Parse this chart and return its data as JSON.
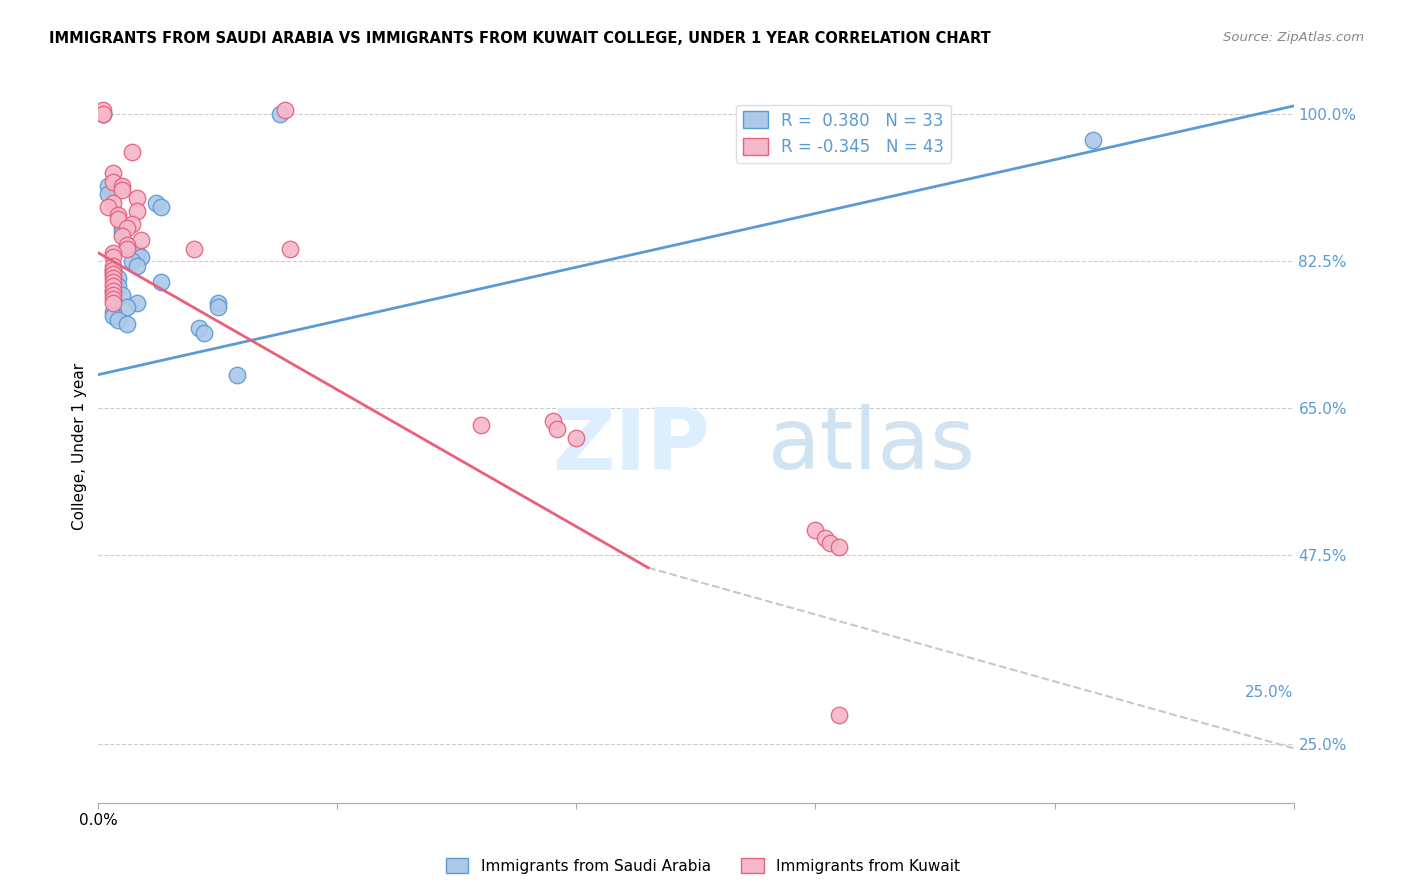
{
  "title": "IMMIGRANTS FROM SAUDI ARABIA VS IMMIGRANTS FROM KUWAIT COLLEGE, UNDER 1 YEAR CORRELATION CHART",
  "source": "Source: ZipAtlas.com",
  "ylabel": "College, Under 1 year",
  "y_ticks_labels": [
    "100.0%",
    "82.5%",
    "65.0%",
    "47.5%",
    "25.0%"
  ],
  "y_tick_values": [
    1.0,
    0.825,
    0.65,
    0.475,
    0.25
  ],
  "x_range": [
    0.0,
    0.25
  ],
  "y_range": [
    0.18,
    1.03
  ],
  "color_blue": "#adc8e8",
  "color_pink": "#f5b8cb",
  "line_blue": "#5b9bd5",
  "line_pink": "#e8607a",
  "line_gray_dash": "#c8c8c8",
  "saudi_points": [
    [
      0.001,
      1.0
    ],
    [
      0.001,
      1.0
    ],
    [
      0.038,
      1.0
    ],
    [
      0.002,
      0.915
    ],
    [
      0.002,
      0.905
    ],
    [
      0.012,
      0.895
    ],
    [
      0.013,
      0.89
    ],
    [
      0.005,
      0.865
    ],
    [
      0.005,
      0.86
    ],
    [
      0.006,
      0.845
    ],
    [
      0.008,
      0.835
    ],
    [
      0.009,
      0.83
    ],
    [
      0.007,
      0.825
    ],
    [
      0.008,
      0.82
    ],
    [
      0.003,
      0.815
    ],
    [
      0.003,
      0.81
    ],
    [
      0.004,
      0.805
    ],
    [
      0.013,
      0.8
    ],
    [
      0.004,
      0.795
    ],
    [
      0.003,
      0.79
    ],
    [
      0.005,
      0.785
    ],
    [
      0.008,
      0.775
    ],
    [
      0.006,
      0.77
    ],
    [
      0.003,
      0.765
    ],
    [
      0.025,
      0.775
    ],
    [
      0.025,
      0.77
    ],
    [
      0.003,
      0.76
    ],
    [
      0.004,
      0.755
    ],
    [
      0.006,
      0.75
    ],
    [
      0.021,
      0.745
    ],
    [
      0.022,
      0.74
    ],
    [
      0.029,
      0.69
    ],
    [
      0.208,
      0.97
    ]
  ],
  "kuwait_points": [
    [
      0.001,
      1.005
    ],
    [
      0.001,
      1.0
    ],
    [
      0.039,
      1.005
    ],
    [
      0.007,
      0.955
    ],
    [
      0.003,
      0.93
    ],
    [
      0.003,
      0.92
    ],
    [
      0.005,
      0.915
    ],
    [
      0.005,
      0.91
    ],
    [
      0.008,
      0.9
    ],
    [
      0.003,
      0.895
    ],
    [
      0.002,
      0.89
    ],
    [
      0.008,
      0.885
    ],
    [
      0.004,
      0.88
    ],
    [
      0.004,
      0.875
    ],
    [
      0.007,
      0.87
    ],
    [
      0.006,
      0.865
    ],
    [
      0.005,
      0.855
    ],
    [
      0.009,
      0.85
    ],
    [
      0.006,
      0.845
    ],
    [
      0.006,
      0.84
    ],
    [
      0.003,
      0.835
    ],
    [
      0.003,
      0.83
    ],
    [
      0.003,
      0.82
    ],
    [
      0.003,
      0.815
    ],
    [
      0.003,
      0.81
    ],
    [
      0.003,
      0.805
    ],
    [
      0.003,
      0.8
    ],
    [
      0.003,
      0.795
    ],
    [
      0.003,
      0.79
    ],
    [
      0.003,
      0.785
    ],
    [
      0.003,
      0.78
    ],
    [
      0.003,
      0.775
    ],
    [
      0.02,
      0.84
    ],
    [
      0.04,
      0.84
    ],
    [
      0.08,
      0.63
    ],
    [
      0.095,
      0.635
    ],
    [
      0.096,
      0.625
    ],
    [
      0.1,
      0.615
    ],
    [
      0.15,
      0.505
    ],
    [
      0.152,
      0.495
    ],
    [
      0.153,
      0.49
    ],
    [
      0.155,
      0.485
    ],
    [
      0.155,
      0.285
    ]
  ],
  "blue_line": [
    [
      0.0,
      0.69
    ],
    [
      0.25,
      1.01
    ]
  ],
  "pink_line_solid": [
    [
      0.0,
      0.835
    ],
    [
      0.115,
      0.46
    ]
  ],
  "pink_line_dash": [
    [
      0.115,
      0.46
    ],
    [
      0.25,
      0.245
    ]
  ]
}
